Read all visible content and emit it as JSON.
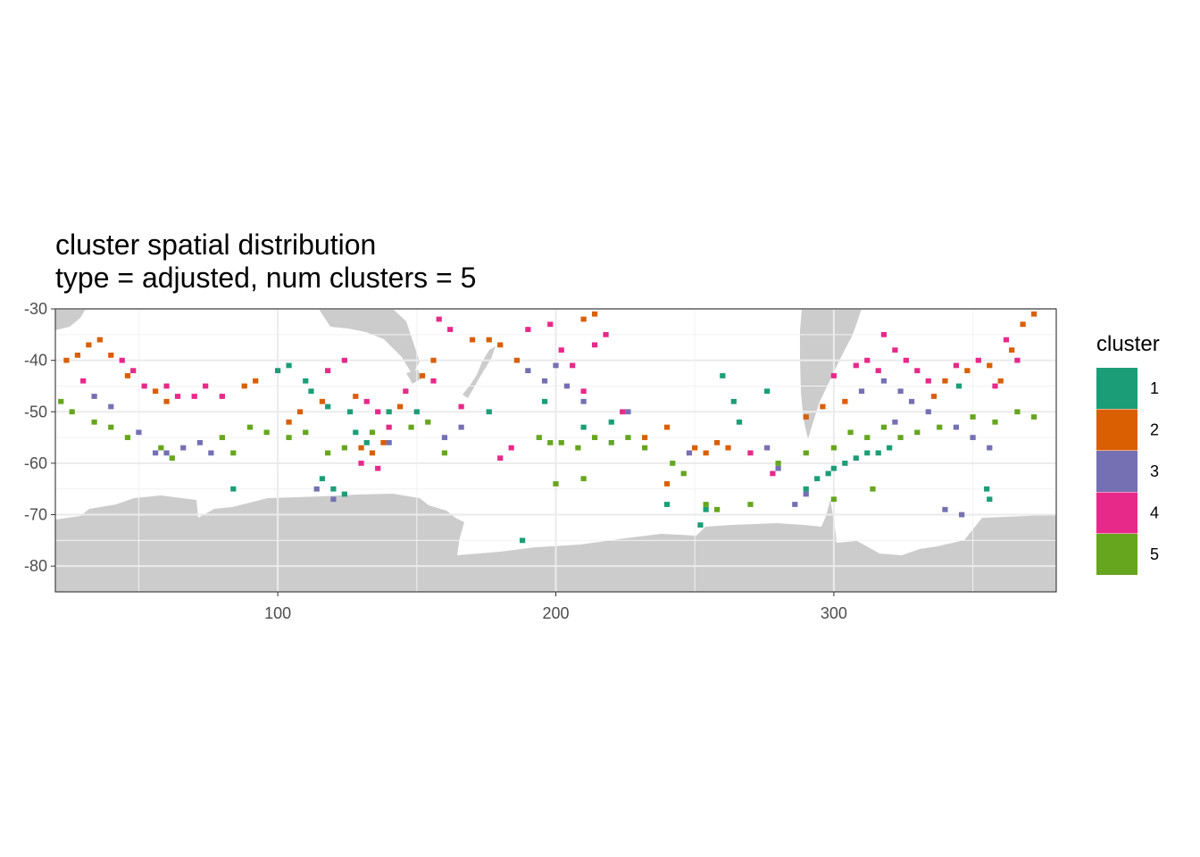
{
  "chart_data": {
    "type": "heatmap",
    "title": "cluster spatial distribution",
    "subtitle": "type = adjusted, num clusters = 5",
    "xlabel": "",
    "ylabel": "",
    "xlim": [
      20,
      380
    ],
    "ylim": [
      -85,
      -30
    ],
    "x_ticks": [
      100,
      200,
      300
    ],
    "x_tick_labels": [
      "100",
      "200",
      "300"
    ],
    "y_ticks": [
      -30,
      -40,
      -50,
      -60,
      -70,
      -80
    ],
    "y_tick_labels": [
      "-30",
      "-40",
      "-50",
      "-60",
      "-70",
      "-80"
    ],
    "grid": true,
    "land_color": "#cccccc",
    "legend": {
      "title": "cluster",
      "position": "right",
      "entries": [
        {
          "label": "1",
          "color": "#1b9e77"
        },
        {
          "label": "2",
          "color": "#d95f02"
        },
        {
          "label": "3",
          "color": "#7570b3"
        },
        {
          "label": "4",
          "color": "#e7298a"
        },
        {
          "label": "5",
          "color": "#66a61e"
        }
      ]
    },
    "clusters": [
      {
        "cluster": "1",
        "cells": [
          [
            100,
            -42
          ],
          [
            104,
            -41
          ],
          [
            110,
            -44
          ],
          [
            112,
            -46
          ],
          [
            118,
            -49
          ],
          [
            126,
            -50
          ],
          [
            128,
            -54
          ],
          [
            132,
            -56
          ],
          [
            140,
            -50
          ],
          [
            150,
            -50
          ],
          [
            196,
            -48
          ],
          [
            210,
            -53
          ],
          [
            220,
            -52
          ],
          [
            260,
            -43
          ],
          [
            264,
            -48
          ],
          [
            266,
            -52
          ],
          [
            276,
            -46
          ],
          [
            300,
            -61
          ],
          [
            304,
            -60
          ],
          [
            308,
            -59
          ],
          [
            312,
            -58
          ],
          [
            316,
            -58
          ],
          [
            320,
            -57
          ],
          [
            290,
            -65
          ],
          [
            294,
            -63
          ],
          [
            298,
            -62
          ],
          [
            355,
            -65
          ],
          [
            356,
            -67
          ],
          [
            240,
            -68
          ],
          [
            252,
            -72
          ],
          [
            254,
            -69
          ],
          [
            84,
            -65
          ],
          [
            116,
            -63
          ],
          [
            120,
            -65
          ],
          [
            124,
            -66
          ],
          [
            188,
            -75
          ],
          [
            176,
            -50
          ],
          [
            345,
            -45
          ]
        ]
      },
      {
        "cluster": "2",
        "cells": [
          [
            24,
            -40
          ],
          [
            28,
            -39
          ],
          [
            32,
            -37
          ],
          [
            36,
            -36
          ],
          [
            40,
            -39
          ],
          [
            46,
            -43
          ],
          [
            56,
            -46
          ],
          [
            60,
            -48
          ],
          [
            88,
            -45
          ],
          [
            92,
            -44
          ],
          [
            104,
            -52
          ],
          [
            108,
            -50
          ],
          [
            116,
            -48
          ],
          [
            128,
            -47
          ],
          [
            144,
            -49
          ],
          [
            152,
            -43
          ],
          [
            156,
            -40
          ],
          [
            170,
            -36
          ],
          [
            176,
            -36
          ],
          [
            180,
            -37
          ],
          [
            186,
            -40
          ],
          [
            210,
            -32
          ],
          [
            214,
            -31
          ],
          [
            250,
            -57
          ],
          [
            254,
            -58
          ],
          [
            258,
            -56
          ],
          [
            262,
            -57
          ],
          [
            240,
            -53
          ],
          [
            232,
            -55
          ],
          [
            356,
            -41
          ],
          [
            360,
            -44
          ],
          [
            364,
            -38
          ],
          [
            368,
            -33
          ],
          [
            372,
            -31
          ],
          [
            340,
            -44
          ],
          [
            336,
            -47
          ],
          [
            348,
            -42
          ],
          [
            290,
            -51
          ],
          [
            296,
            -49
          ],
          [
            304,
            -48
          ],
          [
            130,
            -57
          ],
          [
            134,
            -58
          ],
          [
            138,
            -56
          ],
          [
            240,
            -64
          ]
        ]
      },
      {
        "cluster": "3",
        "cells": [
          [
            34,
            -47
          ],
          [
            40,
            -49
          ],
          [
            50,
            -54
          ],
          [
            56,
            -58
          ],
          [
            60,
            -58
          ],
          [
            66,
            -57
          ],
          [
            72,
            -56
          ],
          [
            76,
            -58
          ],
          [
            114,
            -65
          ],
          [
            120,
            -67
          ],
          [
            140,
            -56
          ],
          [
            160,
            -55
          ],
          [
            166,
            -53
          ],
          [
            190,
            -42
          ],
          [
            196,
            -44
          ],
          [
            200,
            -41
          ],
          [
            204,
            -45
          ],
          [
            210,
            -48
          ],
          [
            226,
            -50
          ],
          [
            248,
            -58
          ],
          [
            286,
            -68
          ],
          [
            290,
            -66
          ],
          [
            310,
            -46
          ],
          [
            318,
            -44
          ],
          [
            324,
            -46
          ],
          [
            328,
            -48
          ],
          [
            334,
            -50
          ],
          [
            344,
            -53
          ],
          [
            350,
            -55
          ],
          [
            356,
            -57
          ],
          [
            322,
            -52
          ],
          [
            340,
            -69
          ],
          [
            346,
            -70
          ],
          [
            280,
            -61
          ],
          [
            276,
            -57
          ]
        ]
      },
      {
        "cluster": "4",
        "cells": [
          [
            30,
            -44
          ],
          [
            44,
            -40
          ],
          [
            48,
            -42
          ],
          [
            52,
            -45
          ],
          [
            60,
            -45
          ],
          [
            64,
            -47
          ],
          [
            70,
            -47
          ],
          [
            74,
            -45
          ],
          [
            80,
            -47
          ],
          [
            118,
            -42
          ],
          [
            124,
            -40
          ],
          [
            132,
            -48
          ],
          [
            136,
            -50
          ],
          [
            140,
            -53
          ],
          [
            146,
            -46
          ],
          [
            156,
            -44
          ],
          [
            158,
            -32
          ],
          [
            162,
            -34
          ],
          [
            166,
            -49
          ],
          [
            180,
            -59
          ],
          [
            184,
            -57
          ],
          [
            190,
            -34
          ],
          [
            198,
            -33
          ],
          [
            202,
            -38
          ],
          [
            206,
            -41
          ],
          [
            210,
            -46
          ],
          [
            214,
            -37
          ],
          [
            218,
            -35
          ],
          [
            224,
            -50
          ],
          [
            318,
            -35
          ],
          [
            322,
            -38
          ],
          [
            326,
            -40
          ],
          [
            330,
            -42
          ],
          [
            334,
            -44
          ],
          [
            300,
            -43
          ],
          [
            308,
            -41
          ],
          [
            312,
            -40
          ],
          [
            316,
            -42
          ],
          [
            344,
            -41
          ],
          [
            352,
            -40
          ],
          [
            358,
            -45
          ],
          [
            362,
            -36
          ],
          [
            366,
            -40
          ],
          [
            270,
            -58
          ],
          [
            278,
            -62
          ],
          [
            136,
            -61
          ],
          [
            130,
            -60
          ]
        ]
      },
      {
        "cluster": "5",
        "cells": [
          [
            22,
            -48
          ],
          [
            26,
            -50
          ],
          [
            34,
            -52
          ],
          [
            40,
            -53
          ],
          [
            46,
            -55
          ],
          [
            58,
            -57
          ],
          [
            62,
            -59
          ],
          [
            80,
            -55
          ],
          [
            84,
            -58
          ],
          [
            90,
            -53
          ],
          [
            96,
            -54
          ],
          [
            104,
            -55
          ],
          [
            110,
            -54
          ],
          [
            118,
            -58
          ],
          [
            124,
            -57
          ],
          [
            134,
            -54
          ],
          [
            148,
            -53
          ],
          [
            154,
            -52
          ],
          [
            160,
            -58
          ],
          [
            194,
            -55
          ],
          [
            198,
            -56
          ],
          [
            202,
            -56
          ],
          [
            208,
            -57
          ],
          [
            214,
            -55
          ],
          [
            220,
            -56
          ],
          [
            226,
            -55
          ],
          [
            232,
            -57
          ],
          [
            242,
            -60
          ],
          [
            246,
            -62
          ],
          [
            254,
            -68
          ],
          [
            258,
            -69
          ],
          [
            280,
            -60
          ],
          [
            290,
            -58
          ],
          [
            300,
            -57
          ],
          [
            306,
            -54
          ],
          [
            312,
            -55
          ],
          [
            318,
            -53
          ],
          [
            324,
            -55
          ],
          [
            330,
            -54
          ],
          [
            338,
            -53
          ],
          [
            350,
            -51
          ],
          [
            358,
            -52
          ],
          [
            366,
            -50
          ],
          [
            372,
            -51
          ],
          [
            314,
            -65
          ],
          [
            300,
            -67
          ],
          [
            270,
            -68
          ],
          [
            200,
            -64
          ],
          [
            210,
            -63
          ]
        ]
      }
    ]
  }
}
